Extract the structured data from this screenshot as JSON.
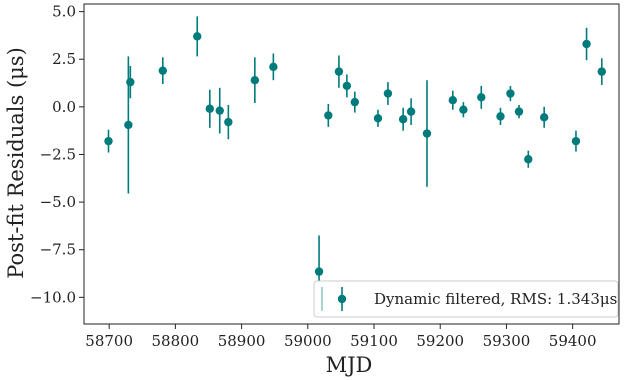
{
  "chart_data": {
    "type": "scatter",
    "xlabel": "MJD",
    "ylabel": "Post-fit Residuals (μs)",
    "xlim": [
      58662,
      59470
    ],
    "ylim": [
      -11.4,
      5.4
    ],
    "x_ticks": [
      58700,
      58800,
      58900,
      59000,
      59100,
      59200,
      59300,
      59400
    ],
    "x_tick_labels": [
      "58700",
      "58800",
      "58900",
      "59000",
      "59100",
      "59200",
      "59300",
      "59400"
    ],
    "y_ticks": [
      5.0,
      2.5,
      0.0,
      -2.5,
      -5.0,
      -7.5,
      -10.0
    ],
    "y_tick_labels": [
      "5.0",
      "2.5",
      "0.0",
      "−2.5",
      "−5.0",
      "−7.5",
      "−10.0"
    ],
    "grid": false,
    "legend_position": "bottom-right",
    "color": "#007b7b",
    "series": [
      {
        "name": "Dynamic filtered, RMS: 1.343μs",
        "x": [
          58699,
          58729,
          58732,
          58781,
          58833,
          58852,
          58867,
          58880,
          58920,
          58948,
          59017,
          59031,
          59047,
          59059,
          59071,
          59106,
          59121,
          59144,
          59156,
          59180,
          59219,
          59235,
          59262,
          59291,
          59306,
          59319,
          59333,
          59357,
          59405,
          59421,
          59444
        ],
        "y": [
          -1.8,
          -0.95,
          1.3,
          1.9,
          3.7,
          -0.1,
          -0.2,
          -0.8,
          1.4,
          2.1,
          -8.65,
          -0.45,
          1.85,
          1.1,
          0.25,
          -0.6,
          0.7,
          -0.65,
          -0.25,
          -1.4,
          0.35,
          -0.15,
          0.5,
          -0.5,
          0.7,
          -0.25,
          -2.75,
          -0.55,
          -1.8,
          3.3,
          1.85
        ],
        "err": [
          0.6,
          3.6,
          0.85,
          0.7,
          1.05,
          1.0,
          1.2,
          0.9,
          1.2,
          0.7,
          1.9,
          0.6,
          0.85,
          0.6,
          0.55,
          0.45,
          0.6,
          0.6,
          0.7,
          2.8,
          0.5,
          0.4,
          0.6,
          0.45,
          0.4,
          0.35,
          0.45,
          0.55,
          0.55,
          0.85,
          0.7
        ]
      }
    ]
  }
}
